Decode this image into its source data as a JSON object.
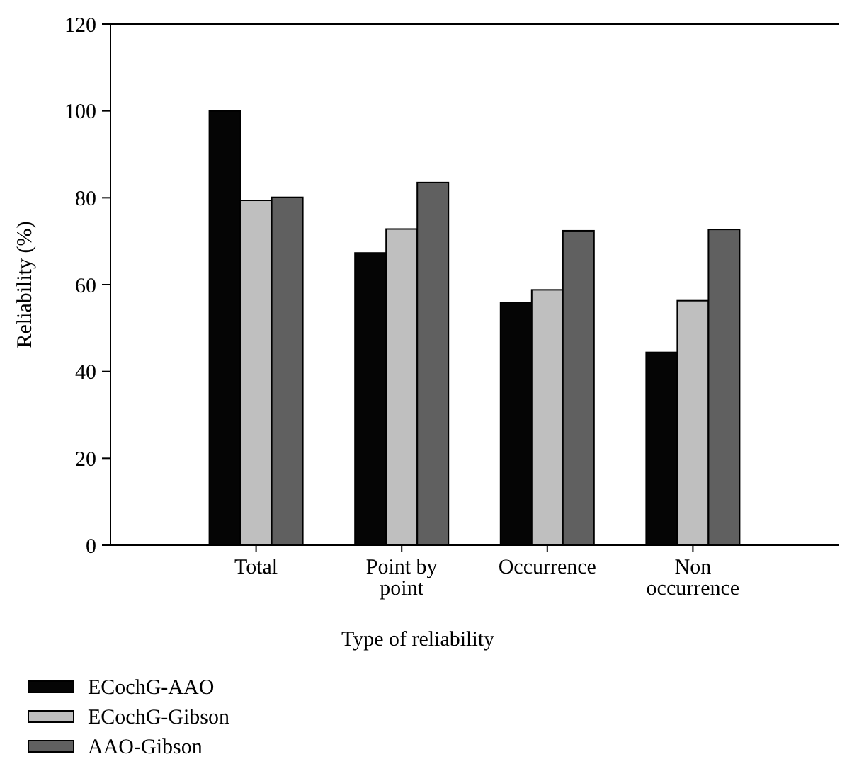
{
  "chart_data": {
    "type": "bar",
    "xlabel": "Type of reliability",
    "ylabel": "Reliability (%)",
    "categories": [
      "Total",
      "Point by\npoint",
      "Occurrence",
      "Non\noccurrence"
    ],
    "series": [
      {
        "name": "ECochG-AAO",
        "color": "#050505",
        "values": [
          100,
          67.3,
          55.9,
          44.4
        ]
      },
      {
        "name": "ECochG-Gibson",
        "color": "#bfbfbf",
        "values": [
          79.4,
          72.8,
          58.8,
          56.3
        ]
      },
      {
        "name": "AAO-Gibson",
        "color": "#606060",
        "values": [
          80.1,
          83.5,
          72.4,
          72.7
        ]
      }
    ],
    "ylim": [
      0,
      120
    ],
    "yticks": [
      0,
      20,
      40,
      60,
      80,
      100,
      120
    ],
    "grid": false,
    "legend": "bottom left"
  }
}
